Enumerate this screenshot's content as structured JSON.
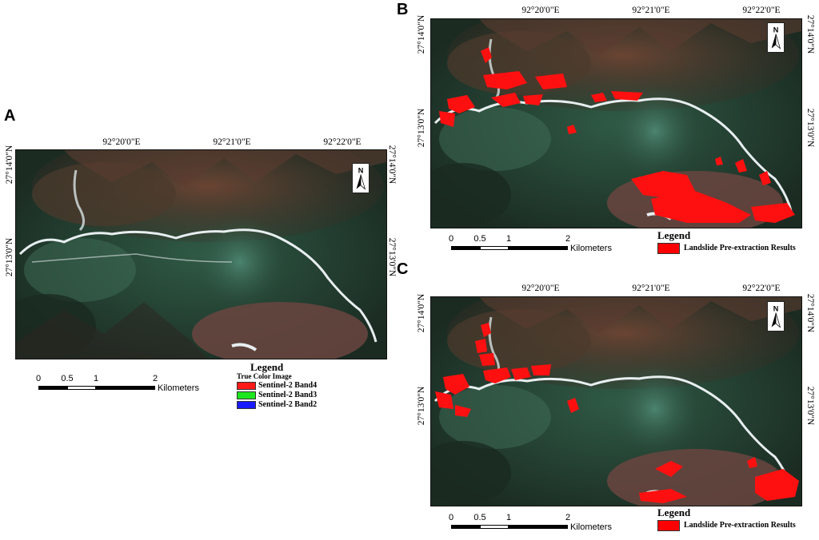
{
  "panels": {
    "a": {
      "letter": "A",
      "lon_labels": [
        "92°20'0\"E",
        "92°21'0\"E",
        "92°22'0\"E"
      ],
      "lat_left": [
        "27°14'0\"N",
        "27°13'0\"N"
      ],
      "lat_right": [
        "27°14'0\"N",
        "27°13'0\"N"
      ]
    },
    "b": {
      "letter": "B",
      "lon_labels": [
        "92°20'0\"E",
        "92°21'0\"E",
        "92°22'0\"E"
      ],
      "lat_left": [
        "27°14'0\"N",
        "27°13'0\"N"
      ],
      "lat_right": [
        "27°14'0\"N",
        "27°13'0\"N"
      ]
    },
    "c": {
      "letter": "C",
      "lon_labels": [
        "92°20'0\"E",
        "92°21'0\"E",
        "92°22'0\"E"
      ],
      "lat_left": [
        "27°14'0\"N",
        "27°13'0\"N"
      ],
      "lat_right": [
        "27°14'0\"N",
        "27°13'0\"N"
      ]
    }
  },
  "north_arrow": {
    "label": "N"
  },
  "scale_bar": {
    "ticks": [
      "0",
      "0.5",
      "1",
      "2"
    ],
    "unit": "Kilometers"
  },
  "legend_a": {
    "title": "Legend",
    "subtitle": "True Color Image",
    "items": [
      {
        "label": "Sentinel-2 Band4",
        "color": "#ff1a1a"
      },
      {
        "label": "Sentinel-2 Band3",
        "color": "#1ee61e"
      },
      {
        "label": "Sentinel-2 Band2",
        "color": "#1a1aff"
      }
    ]
  },
  "legend_bc": {
    "title": "Legend",
    "items": [
      {
        "label": "Landslide Pre-extraction Results",
        "color": "#ff0000"
      }
    ]
  },
  "colors": {
    "landslide": "#ff1010",
    "vegetation": "#1f3a2c",
    "bare_slope": "#5a3528",
    "river": "#e8eef0"
  }
}
